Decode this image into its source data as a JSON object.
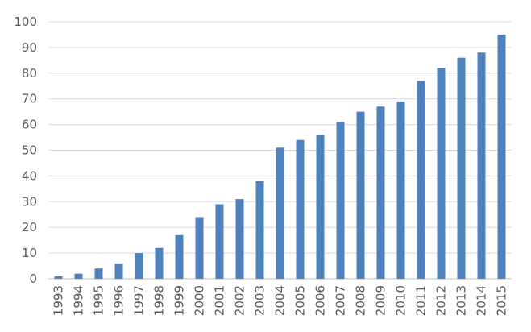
{
  "chart_data": {
    "type": "bar",
    "title": "",
    "xlabel": "",
    "ylabel": "",
    "categories": [
      "1993",
      "1994",
      "1995",
      "1996",
      "1997",
      "1998",
      "1999",
      "2000",
      "2001",
      "2002",
      "2003",
      "2004",
      "2005",
      "2006",
      "2007",
      "2008",
      "2009",
      "2010",
      "2011",
      "2012",
      "2013",
      "2014",
      "2015"
    ],
    "values": [
      1,
      2,
      4,
      6,
      10,
      12,
      17,
      24,
      29,
      31,
      38,
      51,
      54,
      56,
      61,
      65,
      67,
      69,
      77,
      82,
      86,
      88,
      95
    ],
    "ylim": [
      0,
      100
    ],
    "yticks": [
      "0",
      "10",
      "20",
      "30",
      "40",
      "50",
      "60",
      "70",
      "80",
      "90",
      "100"
    ],
    "grid": true,
    "legend": "none",
    "bar_color": "#4f81bd"
  }
}
